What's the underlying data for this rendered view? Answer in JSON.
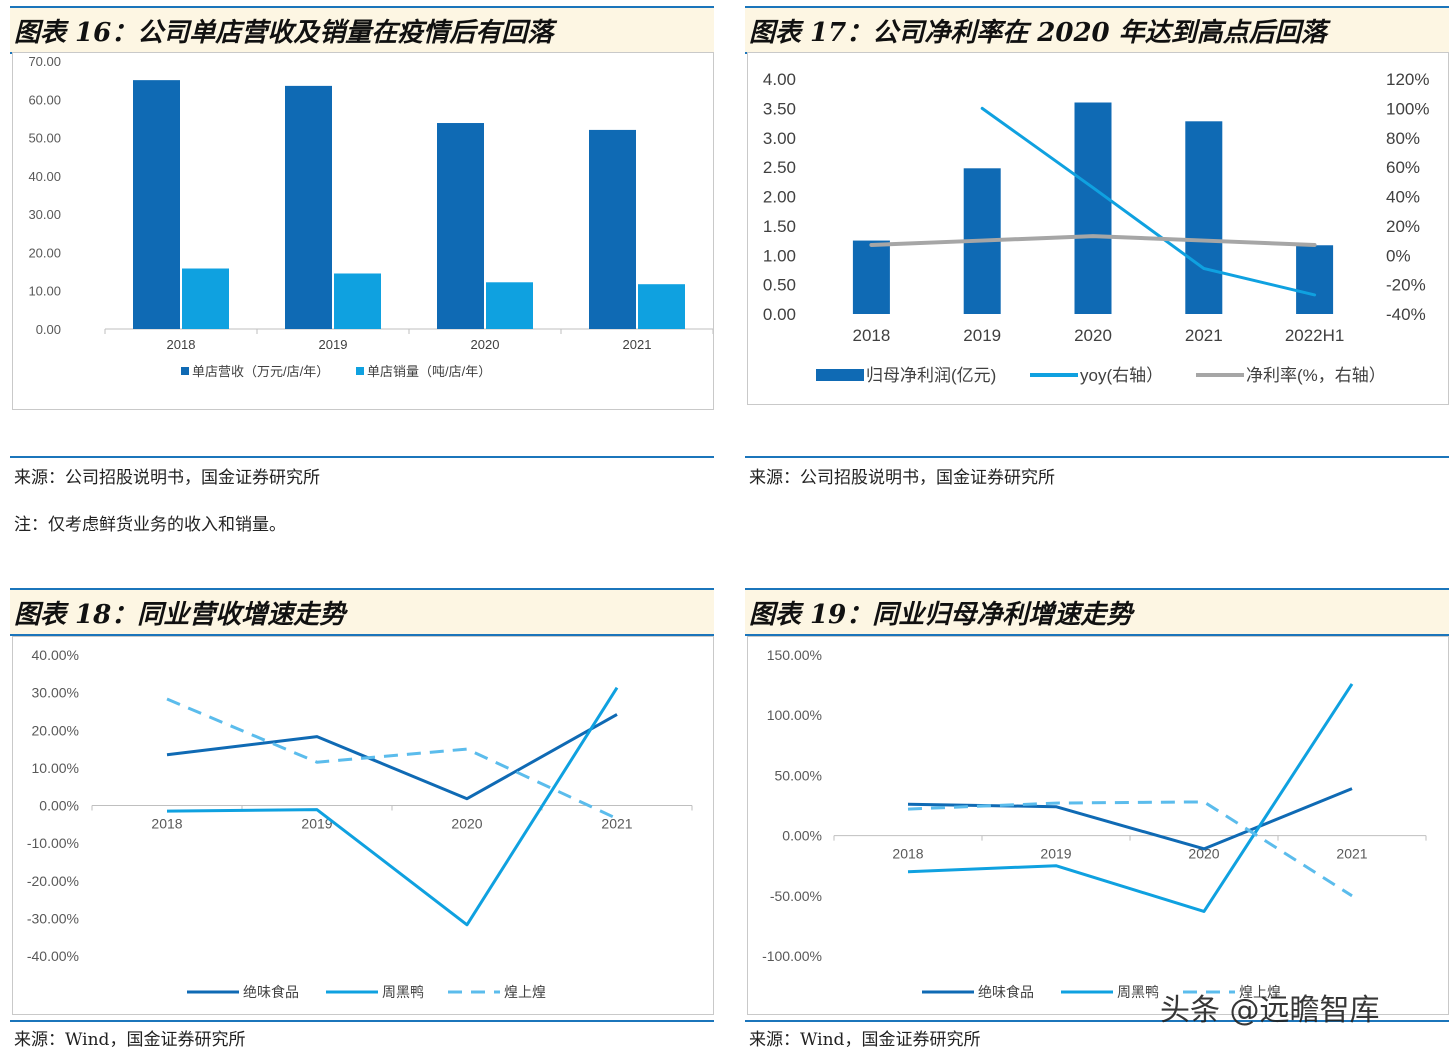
{
  "panels": {
    "p16": {
      "title": "图表 16：公司单店营收及销量在疫情后有回落",
      "source": "来源：公司招股说明书，国金证券研究所",
      "note": "注：仅考虑鲜货业务的收入和销量。"
    },
    "p17": {
      "title": "图表 17：公司净利率在 2020 年达到高点后回落",
      "source": "来源：公司招股说明书，国金证券研究所"
    },
    "p18": {
      "title": "图表 18：同业营收增速走势",
      "source": "来源：Wind，国金证券研究所"
    },
    "p19": {
      "title": "图表 19：同业归母净利增速走势",
      "source": "来源：Wind，国金证券研究所"
    }
  },
  "watermark": "头条 @远瞻智库",
  "colors": {
    "dark_blue": "#0f6ab4",
    "light_blue": "#0fa1e0",
    "dashed_blue": "#5bbcec",
    "gray": "#a6a6a6"
  },
  "chart_data": [
    {
      "id": "c16",
      "type": "bar",
      "categories": [
        "2018",
        "2019",
        "2020",
        "2021"
      ],
      "series": [
        {
          "name": "单店营收（万元/店/年）",
          "values": [
            65.0,
            63.5,
            53.8,
            52.0
          ],
          "color": "#0f6ab4"
        },
        {
          "name": "单店销量（吨/店/年）",
          "values": [
            15.8,
            14.5,
            12.2,
            11.7
          ],
          "color": "#0fa1e0"
        }
      ],
      "ylim": [
        0,
        70
      ],
      "yticks": [
        "0.00",
        "10.00",
        "20.00",
        "30.00",
        "40.00",
        "50.00",
        "60.00",
        "70.00"
      ],
      "legend": "bottom",
      "grid": false
    },
    {
      "id": "c17",
      "type": "bar",
      "categories": [
        "2018",
        "2019",
        "2020",
        "2021",
        "2022H1"
      ],
      "series": [
        {
          "name": "归母净利润(亿元)",
          "kind": "bar",
          "axis": "left",
          "values": [
            1.25,
            2.48,
            3.6,
            3.28,
            1.17
          ],
          "color": "#0f6ab4"
        },
        {
          "name": "yoy(右轴）",
          "kind": "line",
          "axis": "right",
          "values": [
            null,
            1.0,
            0.46,
            -0.09,
            -0.27
          ],
          "color": "#0fa1e0"
        },
        {
          "name": "净利率(%，右轴）",
          "kind": "line",
          "axis": "right",
          "values": [
            0.07,
            0.1,
            0.13,
            0.1,
            0.07
          ],
          "color": "#a6a6a6"
        }
      ],
      "ylim": [
        0,
        4
      ],
      "yticks": [
        "0.00",
        "0.50",
        "1.00",
        "1.50",
        "2.00",
        "2.50",
        "3.00",
        "3.50",
        "4.00"
      ],
      "y2lim": [
        -0.4,
        1.2
      ],
      "y2ticks": [
        "-40%",
        "-20%",
        "0%",
        "20%",
        "40%",
        "60%",
        "80%",
        "100%",
        "120%"
      ],
      "legend": "bottom",
      "grid": false
    },
    {
      "id": "c18",
      "type": "line",
      "categories": [
        "2018",
        "2019",
        "2020",
        "2021"
      ],
      "series": [
        {
          "name": "绝味食品",
          "values": [
            0.135,
            0.183,
            0.018,
            0.242
          ],
          "color": "#0f6ab4",
          "dash": false
        },
        {
          "name": "周黑鸭",
          "values": [
            -0.015,
            -0.011,
            -0.317,
            0.313
          ],
          "color": "#0fa1e0",
          "dash": false
        },
        {
          "name": "煌上煌",
          "values": [
            0.283,
            0.115,
            0.15,
            -0.035
          ],
          "color": "#5bbcec",
          "dash": true
        }
      ],
      "ylim": [
        -0.4,
        0.4
      ],
      "yticks": [
        "-40.00%",
        "-30.00%",
        "-20.00%",
        "-10.00%",
        "0.00%",
        "10.00%",
        "20.00%",
        "30.00%",
        "40.00%"
      ],
      "legend": "bottom",
      "grid": false
    },
    {
      "id": "c19",
      "type": "line",
      "categories": [
        "2018",
        "2019",
        "2020",
        "2021"
      ],
      "series": [
        {
          "name": "绝味食品",
          "values": [
            0.26,
            0.24,
            -0.11,
            0.39
          ],
          "color": "#0f6ab4",
          "dash": false
        },
        {
          "name": "周黑鸭",
          "values": [
            -0.3,
            -0.25,
            -0.63,
            1.26
          ],
          "color": "#0fa1e0",
          "dash": false
        },
        {
          "name": "煌上煌",
          "values": [
            0.22,
            0.27,
            0.28,
            -0.5
          ],
          "color": "#5bbcec",
          "dash": true
        }
      ],
      "ylim": [
        -1.0,
        1.5
      ],
      "yticks": [
        "-100.00%",
        "-50.00%",
        "0.00%",
        "50.00%",
        "100.00%",
        "150.00%"
      ],
      "legend": "bottom",
      "grid": false
    }
  ]
}
